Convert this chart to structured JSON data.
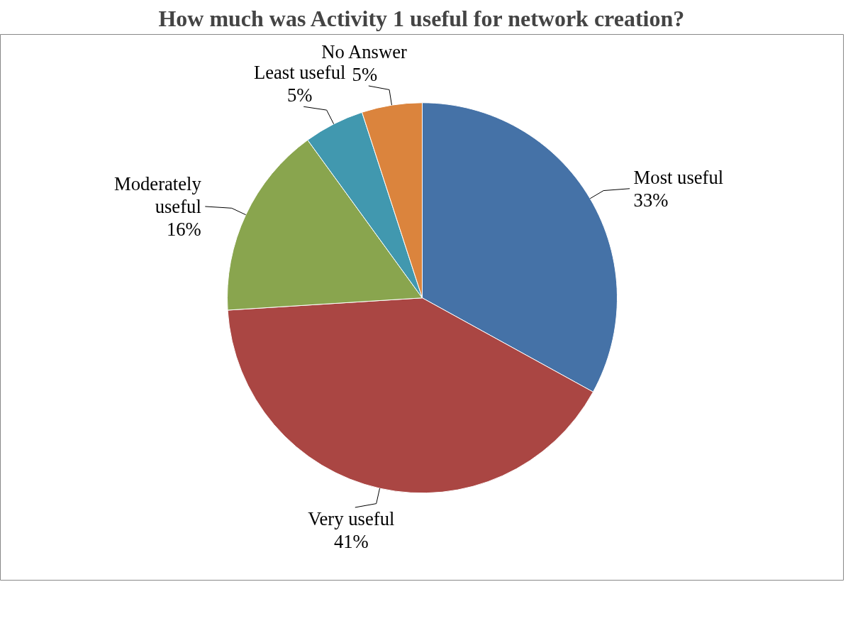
{
  "chart_data": {
    "type": "pie",
    "title": "How much was Activity 1 useful for network creation?",
    "categories": [
      "Most useful",
      "Very useful",
      "Moderately useful",
      "Least useful",
      "No Answer"
    ],
    "values": [
      33,
      41,
      16,
      5,
      5
    ],
    "colors": [
      "#4572a7",
      "#aa4643",
      "#89a54e",
      "#4198af",
      "#db843d"
    ],
    "value_labels": [
      "33%",
      "41%",
      "16%",
      "5%",
      "5%"
    ]
  }
}
